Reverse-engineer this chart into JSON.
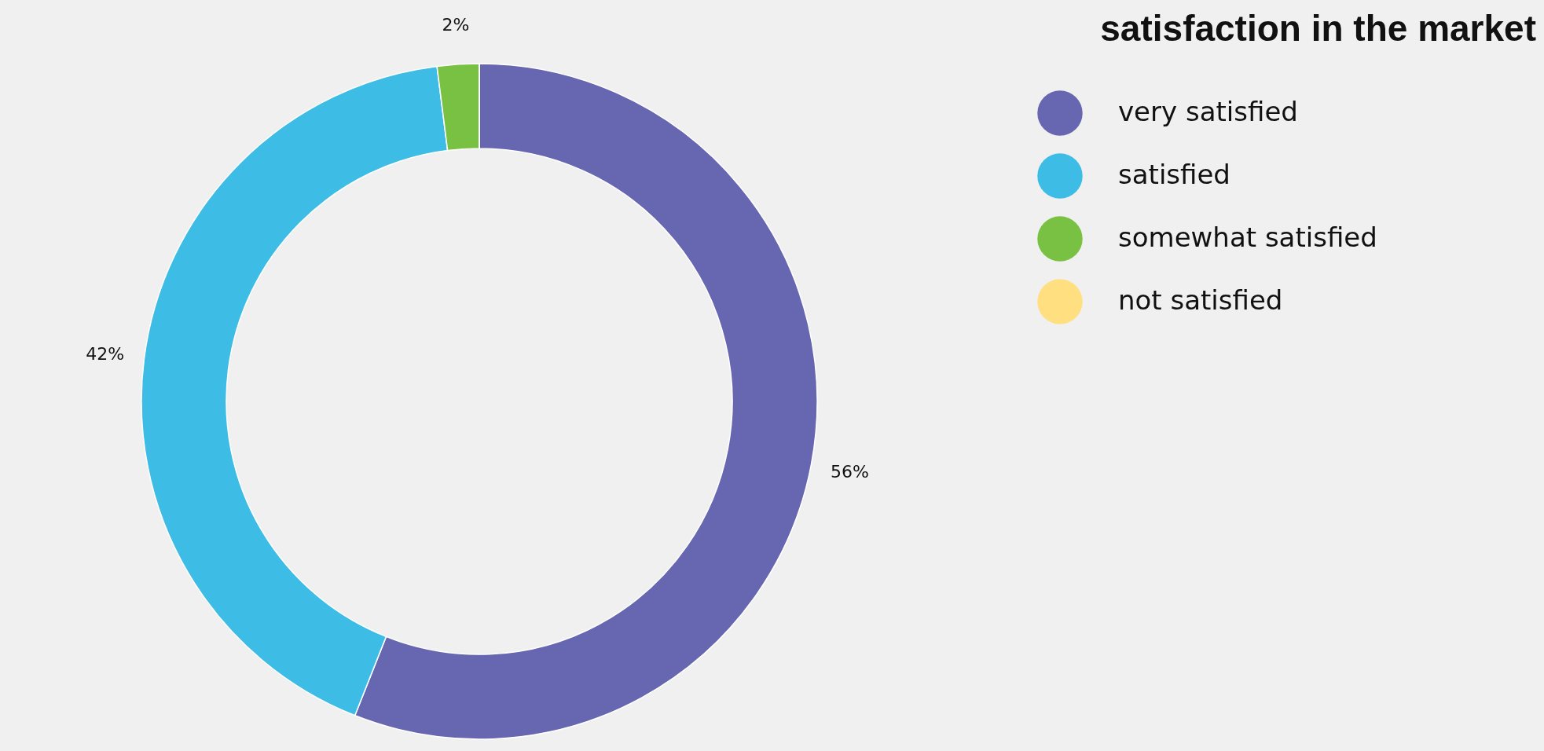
{
  "chart_data": {
    "type": "donut",
    "title": "satisfaction in the market",
    "categories": [
      "very satisfied",
      "satisfied",
      "somewhat satisfied",
      "not satisfied"
    ],
    "values": [
      56,
      42,
      2,
      0
    ],
    "colors": [
      "#6667b0",
      "#3dbce5",
      "#79c143",
      "#ffdf80"
    ],
    "value_labels": [
      "56%",
      "42%",
      "2%",
      null
    ],
    "legend": "top right"
  }
}
